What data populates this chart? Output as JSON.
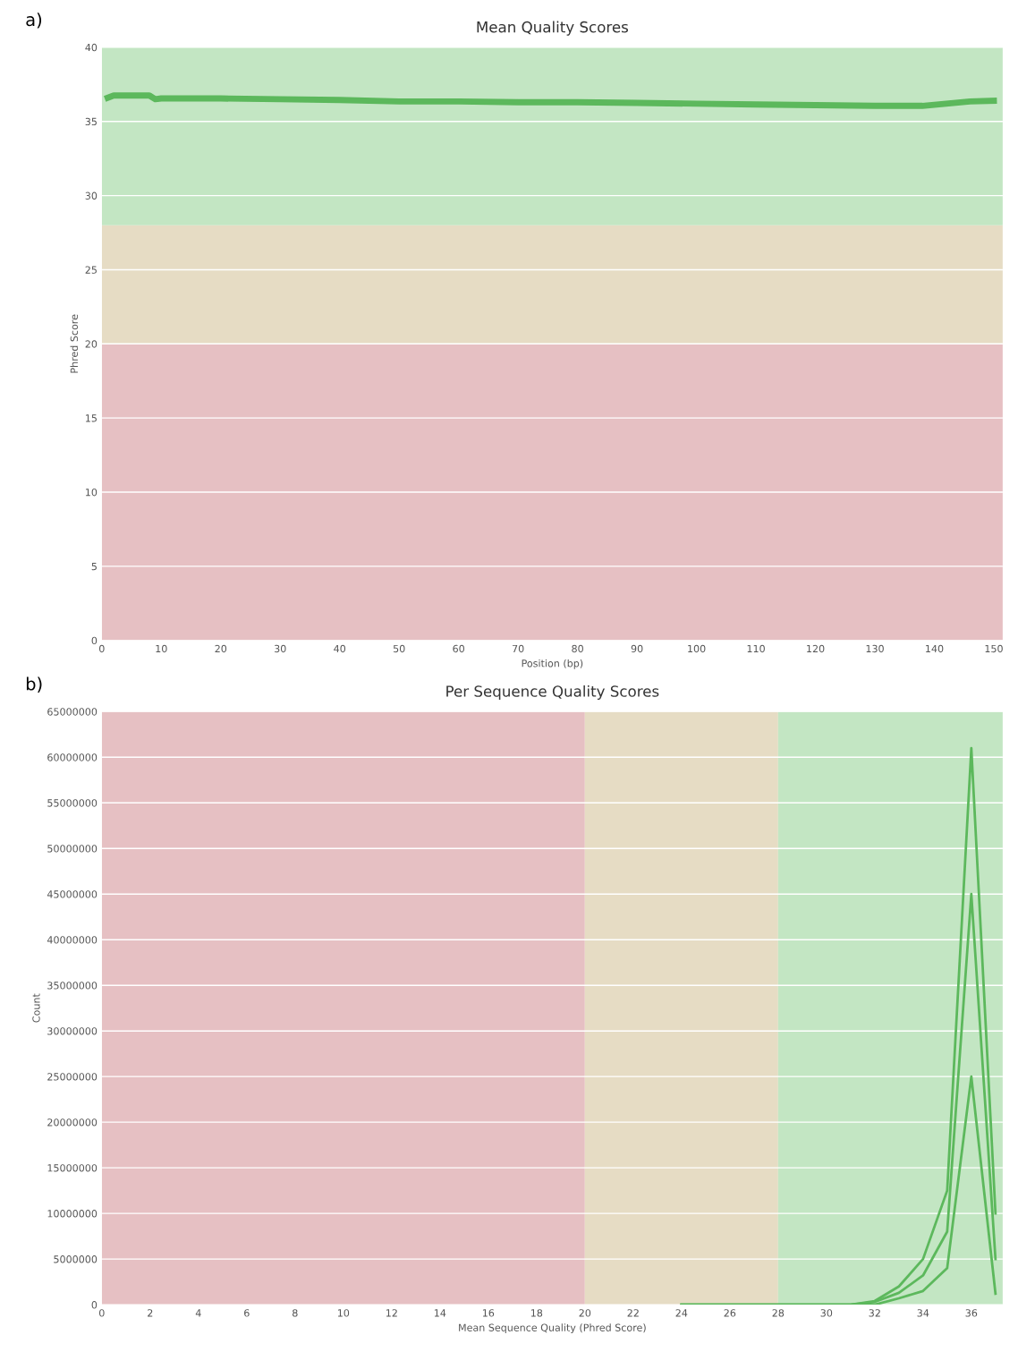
{
  "chart_data": [
    {
      "type": "line",
      "title": "Mean Quality Scores",
      "xlabel": "Position (bp)",
      "ylabel": "Phred Score",
      "annotations": [
        "a)"
      ],
      "xlim": [
        0,
        151.5
      ],
      "xticks": [
        0,
        10,
        20,
        30,
        40,
        50,
        60,
        70,
        80,
        90,
        100,
        110,
        120,
        130,
        140,
        150
      ],
      "ylim": [
        0,
        40
      ],
      "yticks": [
        0,
        5,
        10,
        15,
        20,
        25,
        30,
        35,
        40
      ],
      "grid": "y",
      "marker": "none",
      "line_style": "solid",
      "bands": [
        {
          "axis": "y",
          "from": 0,
          "to": 20,
          "color": "#e6c0c3"
        },
        {
          "axis": "y",
          "from": 20,
          "to": 28,
          "color": "#e6dcc4"
        },
        {
          "axis": "y",
          "from": 28,
          "to": 40,
          "color": "#c3e6c3"
        }
      ],
      "series": [
        {
          "color": "#5cb85c",
          "x": [
            1,
            2,
            4,
            6,
            8,
            9,
            10,
            20,
            30,
            40,
            50,
            60,
            70,
            80,
            90,
            100,
            110,
            120,
            130,
            138,
            142,
            146,
            150
          ],
          "values": [
            36.6,
            36.75,
            36.75,
            36.75,
            36.75,
            36.5,
            36.55,
            36.55,
            36.5,
            36.45,
            36.35,
            36.35,
            36.3,
            36.3,
            36.25,
            36.2,
            36.15,
            36.1,
            36.05,
            36.05,
            36.2,
            36.35,
            36.4
          ]
        }
      ]
    },
    {
      "type": "line",
      "title": "Per Sequence Quality Scores",
      "xlabel": "Mean Sequence Quality (Phred Score)",
      "ylabel": "Count",
      "annotations": [
        "b)"
      ],
      "xlim": [
        0,
        37.3
      ],
      "xticks": [
        0,
        2,
        4,
        6,
        8,
        10,
        12,
        14,
        16,
        18,
        20,
        22,
        24,
        26,
        28,
        30,
        32,
        34,
        36
      ],
      "ylim": [
        0,
        65000000
      ],
      "yticks": [
        0,
        5000000,
        10000000,
        15000000,
        20000000,
        25000000,
        30000000,
        35000000,
        40000000,
        45000000,
        50000000,
        55000000,
        60000000,
        65000000
      ],
      "grid": "y",
      "marker": "none",
      "line_style": "solid",
      "bands": [
        {
          "axis": "x",
          "from": 0,
          "to": 20,
          "color": "#e6c0c3"
        },
        {
          "axis": "x",
          "from": 20,
          "to": 28,
          "color": "#e6dcc4"
        },
        {
          "axis": "x",
          "from": 28,
          "to": 37.3,
          "color": "#c3e6c3"
        }
      ],
      "series": [
        {
          "color": "#5cb85c",
          "x": [
            24,
            26,
            28,
            30,
            31,
            32,
            33,
            34,
            35,
            36,
            37
          ],
          "values": [
            0,
            0,
            0,
            0,
            0,
            0,
            700000,
            1500000,
            4000000,
            25000000,
            1200000
          ]
        },
        {
          "color": "#5cb85c",
          "x": [
            24,
            26,
            28,
            30,
            31,
            32,
            33,
            34,
            35,
            36,
            37
          ],
          "values": [
            0,
            0,
            0,
            0,
            0,
            300000,
            1300000,
            3200000,
            8000000,
            45000000,
            5000000
          ]
        },
        {
          "color": "#5cb85c",
          "x": [
            24,
            26,
            28,
            30,
            31,
            32,
            33,
            34,
            35,
            36,
            37
          ],
          "values": [
            0,
            0,
            0,
            0,
            0,
            400000,
            2000000,
            5000000,
            12500000,
            61000000,
            10000000
          ]
        }
      ]
    }
  ]
}
